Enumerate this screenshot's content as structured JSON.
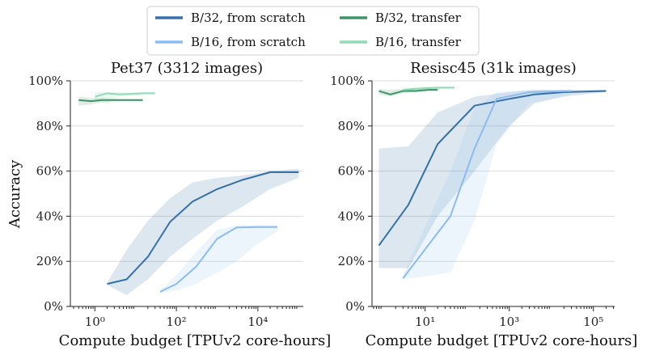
{
  "colors": {
    "b32_scratch": "#3670a8",
    "b16_scratch": "#8cbcef",
    "b32_transfer": "#3f9468",
    "b16_transfer": "#8edbb4"
  },
  "legend": [
    {
      "label": "B/32, from scratch",
      "color": "#3670a8"
    },
    {
      "label": "B/32, transfer",
      "color": "#3f9468"
    },
    {
      "label": "B/16, from scratch",
      "color": "#8cbcef"
    },
    {
      "label": "B/16, transfer",
      "color": "#8edbb4"
    }
  ],
  "shared": {
    "ylabel": "Accuracy",
    "yticks": [
      "0%",
      "20%",
      "40%",
      "60%",
      "80%",
      "100%"
    ]
  },
  "chart_data": [
    {
      "type": "line",
      "title": "Pet37 (3312 images)",
      "xlabel": "Compute budget [TPUv2 core-hours]",
      "ylabel": "Accuracy",
      "xscale": "log",
      "xlim": [
        0.25,
        130000
      ],
      "ylim": [
        0,
        100
      ],
      "xticks": [
        {
          "value": 1,
          "label": "10⁰"
        },
        {
          "value": 100,
          "label": "10²"
        },
        {
          "value": 10000,
          "label": "10⁴"
        }
      ],
      "grid": "y",
      "series": [
        {
          "name": "B/32, from scratch",
          "x": [
            2,
            6,
            20,
            70,
            250,
            1000,
            4000,
            20000,
            100000
          ],
          "y": [
            10,
            12,
            22,
            37.5,
            46.5,
            52,
            56,
            59.5,
            59.5
          ],
          "band_low": [
            9.5,
            5,
            12,
            22,
            30,
            38,
            44,
            52,
            57
          ],
          "band_high": [
            10.5,
            25,
            38,
            48,
            55,
            57,
            58,
            60,
            61
          ]
        },
        {
          "name": "B/16, from scratch",
          "x": [
            40,
            100,
            300,
            1000,
            3000,
            10000,
            30000
          ],
          "y": [
            6.5,
            10,
            17.5,
            30,
            35,
            35.2,
            35.2
          ],
          "band_low": [
            6,
            7,
            10,
            15,
            20,
            28,
            33
          ],
          "band_high": [
            7,
            14,
            24,
            34,
            36,
            36,
            36
          ]
        },
        {
          "name": "B/32, transfer",
          "x": [
            0.4,
            0.8,
            1.5,
            3,
            6,
            15
          ],
          "y": [
            91.5,
            91,
            91.5,
            91.5,
            91.5,
            91.5
          ],
          "band_low": [
            89,
            89.5,
            90.5,
            91,
            91,
            91
          ],
          "band_high": [
            93,
            92.5,
            92.5,
            92,
            92,
            92
          ]
        },
        {
          "name": "B/16, transfer",
          "x": [
            1,
            2,
            4,
            8,
            15,
            30
          ],
          "y": [
            93,
            94.5,
            94,
            94.2,
            94.5,
            94.5
          ],
          "band_low": [
            92,
            89.5,
            93,
            93.5,
            94,
            94
          ],
          "band_high": [
            95,
            95,
            95,
            95,
            95,
            95
          ]
        }
      ]
    },
    {
      "type": "line",
      "title": "Resisc45 (31k images)",
      "xlabel": "Compute budget [TPUv2 core-hours]",
      "ylabel": "",
      "xscale": "log",
      "xlim": [
        0.55,
        320000
      ],
      "ylim": [
        0,
        100
      ],
      "xticks": [
        {
          "value": 10,
          "label": "10¹"
        },
        {
          "value": 1000,
          "label": "10³"
        },
        {
          "value": 100000,
          "label": "10⁵"
        }
      ],
      "grid": "y",
      "series": [
        {
          "name": "B/32, from scratch",
          "x": [
            0.8,
            4,
            20,
            150,
            1000,
            4000,
            20000,
            200000
          ],
          "y": [
            27,
            45,
            72,
            89,
            92,
            94,
            95,
            95.5
          ],
          "band_low": [
            17,
            17,
            40,
            60,
            80,
            90,
            93,
            95
          ],
          "band_high": [
            70,
            71,
            86,
            93,
            95,
            96,
            96,
            96
          ]
        },
        {
          "name": "B/16, from scratch",
          "x": [
            3,
            40,
            150,
            500,
            3000,
            30000
          ],
          "y": [
            12.5,
            40,
            70,
            92,
            95,
            95.5
          ],
          "band_low": [
            12,
            15,
            38,
            72,
            90,
            94
          ],
          "band_high": [
            14,
            60,
            88,
            95,
            96,
            96
          ]
        },
        {
          "name": "B/32, transfer",
          "x": [
            0.8,
            1.5,
            3,
            6,
            12,
            20
          ],
          "y": [
            95.5,
            94,
            95.5,
            95.5,
            96,
            96
          ],
          "band_low": [
            94,
            93,
            94.5,
            95,
            95.5,
            95.5
          ],
          "band_high": [
            96.5,
            96,
            96.5,
            96.5,
            96.5,
            96.5
          ]
        },
        {
          "name": "B/16, transfer",
          "x": [
            3,
            6,
            12,
            25,
            50
          ],
          "y": [
            96,
            96.5,
            96.8,
            97,
            97
          ],
          "band_low": [
            95,
            95.8,
            96,
            96.3,
            96.5
          ],
          "band_high": [
            97,
            97.2,
            97.5,
            97.6,
            97.6
          ]
        }
      ]
    }
  ]
}
